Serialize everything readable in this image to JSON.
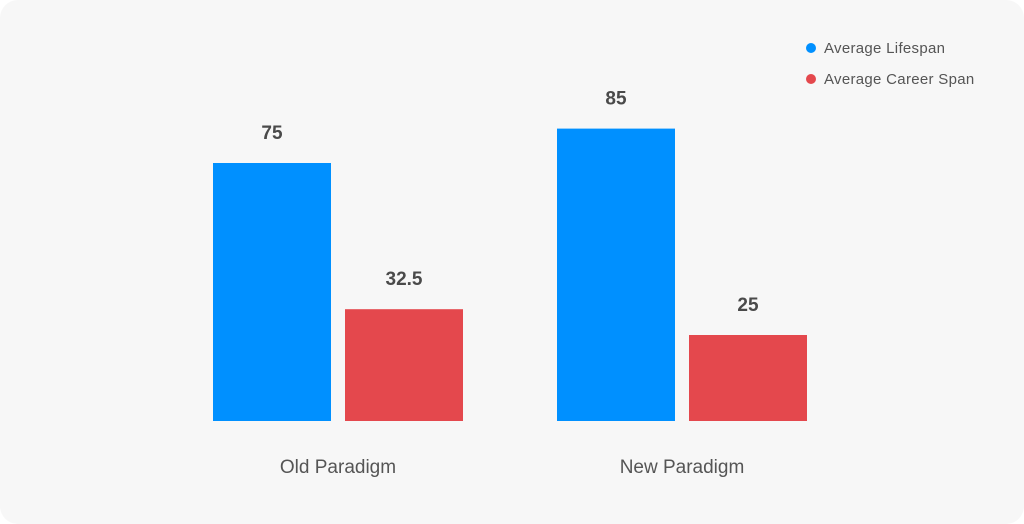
{
  "chart_data": {
    "type": "bar",
    "categories": [
      "Old Paradigm",
      "New Paradigm"
    ],
    "series": [
      {
        "name": "Average Lifespan",
        "values": [
          75,
          85
        ],
        "color": "#0090ff"
      },
      {
        "name": "Average Career Span",
        "values": [
          32.5,
          25
        ],
        "color": "#e4484d"
      }
    ],
    "value_labels": [
      [
        "75",
        "85"
      ],
      [
        "32.5",
        "25"
      ]
    ],
    "ylim": [
      0,
      100
    ],
    "grid": false,
    "legend_position": "top-right"
  }
}
